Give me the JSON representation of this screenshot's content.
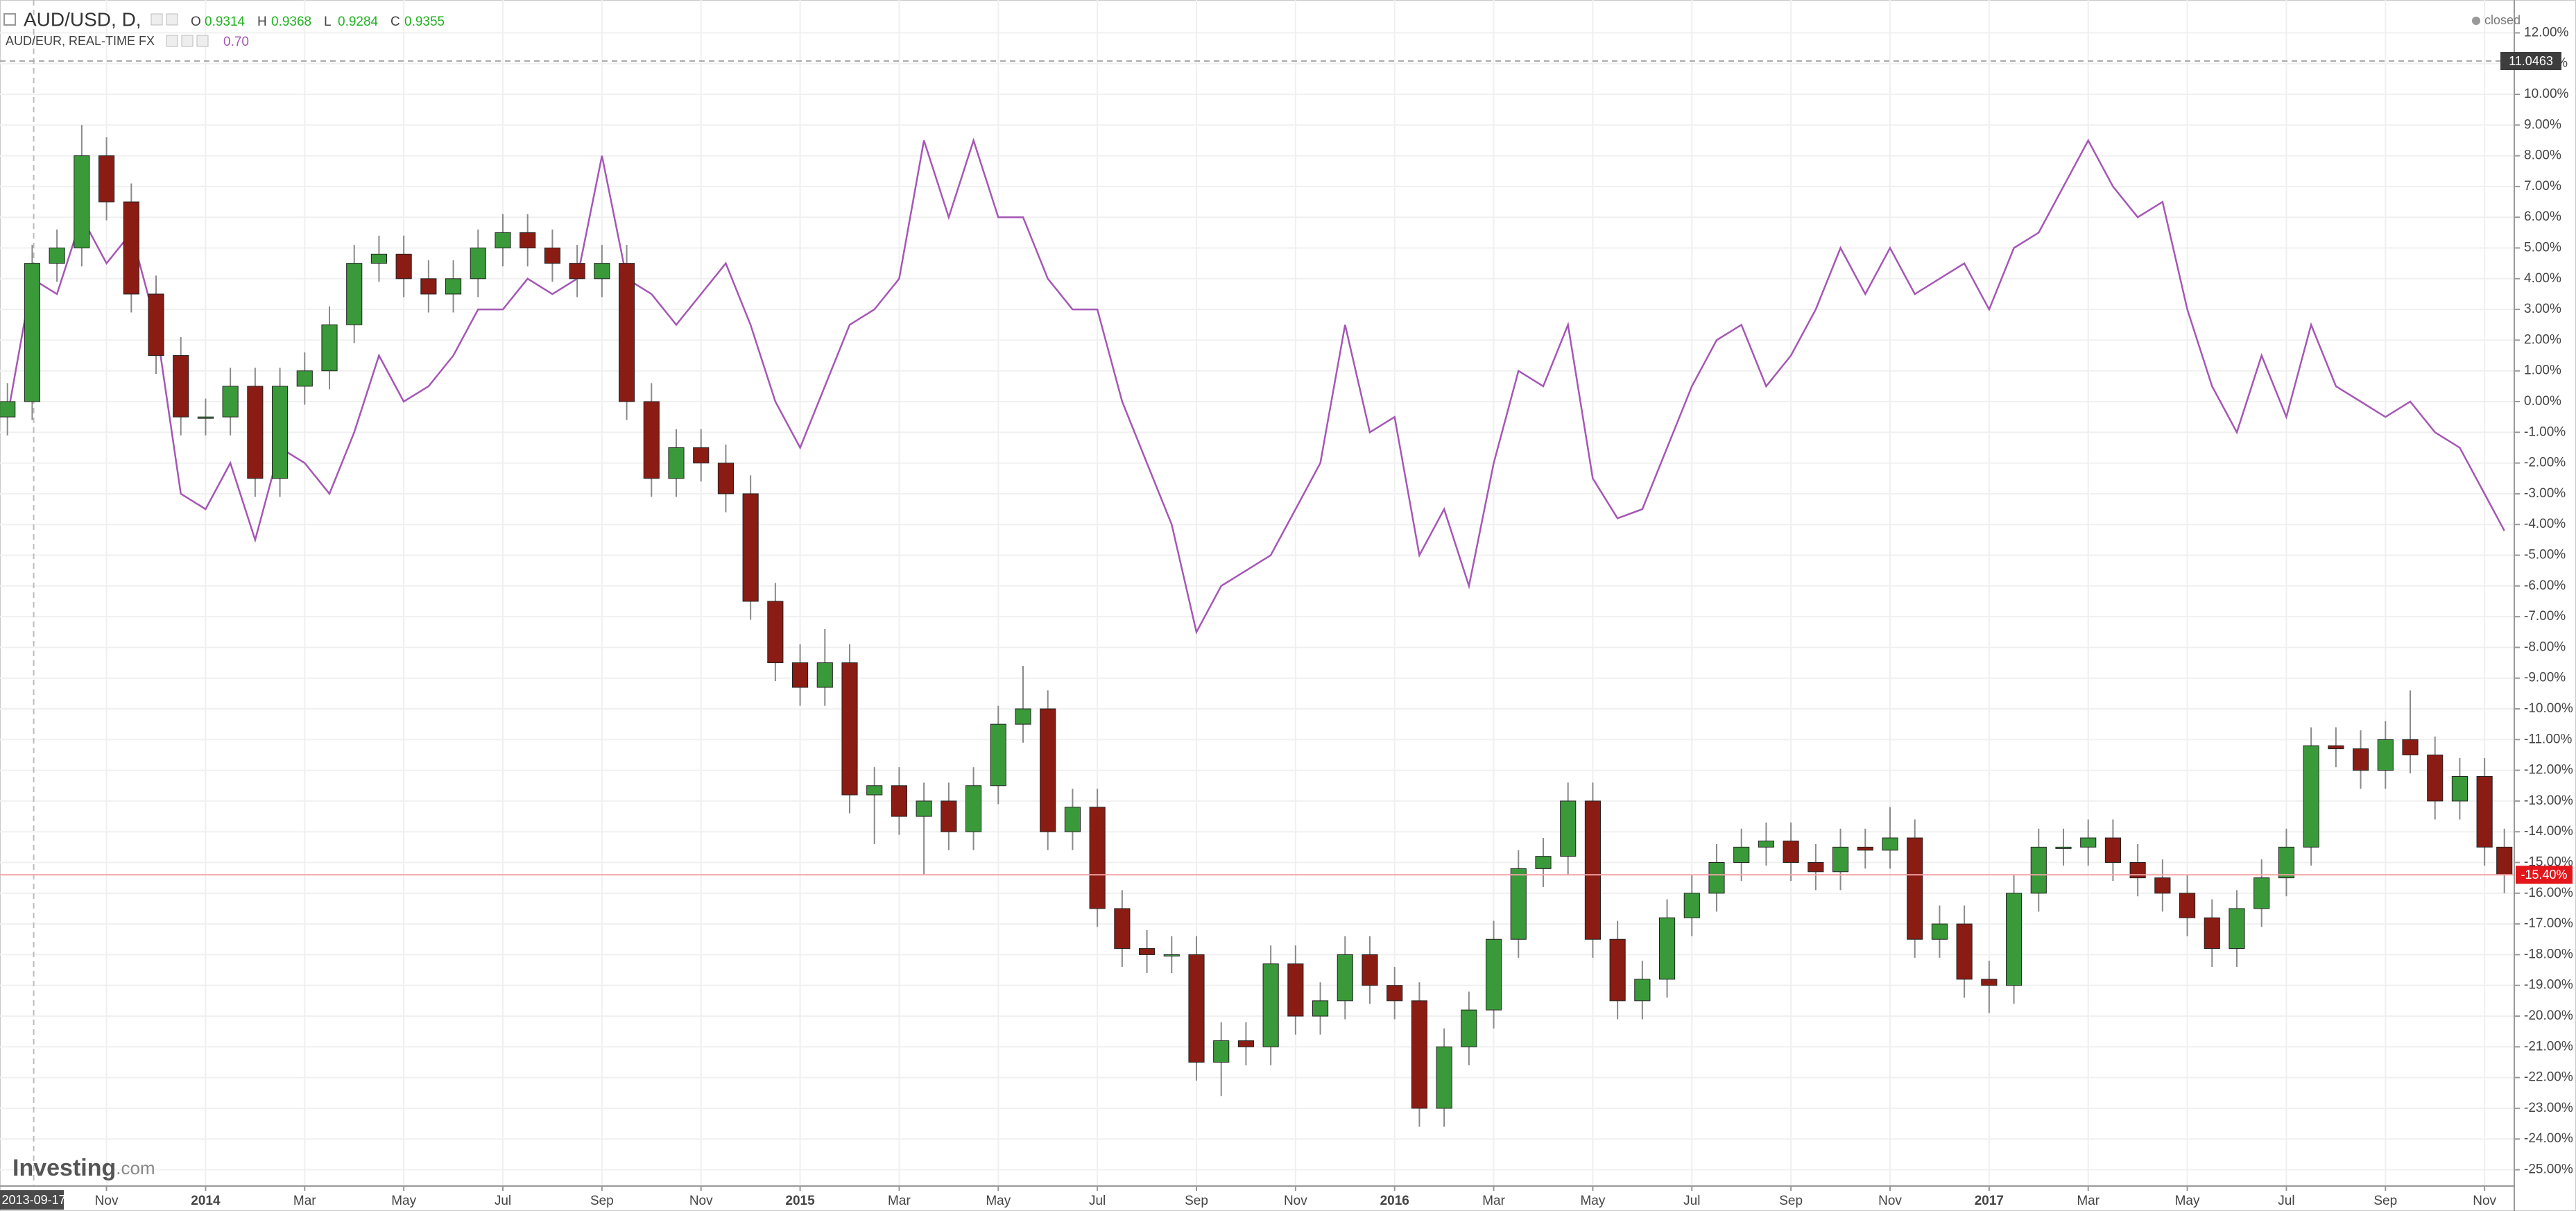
{
  "chart_data": {
    "type": "candlestick",
    "market_status": "closed",
    "watermark": [
      "Investing",
      ".com"
    ],
    "top_marker": {
      "label": "11.0463"
    },
    "last_marker": {
      "value": -15.4,
      "label": "-15.40%"
    },
    "grid": true,
    "xlim": [
      -0.15,
      50.6
    ],
    "ylim": [
      -25.53,
      13.07
    ],
    "x": [
      0,
      0.5,
      1,
      1.5,
      2,
      2.5,
      3,
      3.5,
      4,
      4.5,
      5,
      5.5,
      6,
      6.5,
      7,
      7.5,
      8,
      8.5,
      9,
      9.5,
      10,
      10.5,
      11,
      11.5,
      12,
      12.5,
      13,
      13.5,
      14,
      14.5,
      15,
      15.5,
      16,
      16.5,
      17,
      17.5,
      18,
      18.5,
      19,
      19.5,
      20,
      20.5,
      21,
      21.5,
      22,
      22.5,
      23,
      23.5,
      24,
      24.5,
      25,
      25.5,
      26,
      26.5,
      27,
      27.5,
      28,
      28.5,
      29,
      29.5,
      30,
      30.5,
      31,
      31.5,
      32,
      32.5,
      33,
      33.5,
      34,
      34.5,
      35,
      35.5,
      36,
      36.5,
      37,
      37.5,
      38,
      38.5,
      39,
      39.5,
      40,
      40.5,
      41,
      41.5,
      42,
      42.5,
      43,
      43.5,
      44,
      44.5,
      45,
      45.5,
      46,
      46.5,
      47,
      47.5,
      48,
      48.5,
      49,
      49.5,
      50,
      50.4
    ],
    "series": [
      {
        "name": "AUD/USD, D,",
        "type": "candlestick",
        "up_color": "#3a9a3a",
        "down_color": "#8a1c14",
        "wick_color": "#8a8a8a",
        "ohlc_legend": [
          {
            "key": "O",
            "value": "0.9314"
          },
          {
            "key": "H",
            "value": "0.9368"
          },
          {
            "key": "L",
            "value": "0.9284"
          },
          {
            "key": "C",
            "value": "0.9355"
          }
        ],
        "ohlc_color": "#21b121",
        "open": [
          -0.5,
          0.0,
          4.5,
          5.0,
          8.0,
          6.5,
          3.5,
          1.5,
          -0.5,
          -0.5,
          0.5,
          -2.5,
          0.5,
          1.0,
          2.5,
          4.5,
          4.8,
          4.0,
          3.5,
          4.0,
          5.0,
          5.5,
          5.0,
          4.5,
          4.0,
          4.5,
          0.0,
          -2.5,
          -1.5,
          -2.0,
          -3.0,
          -6.5,
          -8.5,
          -9.3,
          -8.5,
          -12.8,
          -12.5,
          -13.5,
          -13.0,
          -14.0,
          -12.5,
          -10.5,
          -10.0,
          -14.0,
          -13.2,
          -16.5,
          -17.8,
          -18.0,
          -18.0,
          -21.5,
          -20.8,
          -21.0,
          -18.3,
          -20.0,
          -19.5,
          -18.0,
          -19.0,
          -19.5,
          -23.0,
          -21.0,
          -19.8,
          -17.5,
          -15.2,
          -14.8,
          -13.0,
          -17.5,
          -19.5,
          -18.8,
          -16.8,
          -16.0,
          -15.0,
          -14.5,
          -14.3,
          -15.0,
          -15.3,
          -14.5,
          -14.6,
          -14.2,
          -17.5,
          -17.0,
          -18.8,
          -19.0,
          -16.0,
          -14.5,
          -14.5,
          -14.2,
          -15.0,
          -15.5,
          -16.0,
          -16.8,
          -17.8,
          -16.5,
          -15.5,
          -14.5,
          -11.2,
          -11.3,
          -12.0,
          -11.0,
          -11.5,
          -13.0,
          -12.2,
          -14.5
        ],
        "high": [
          0.6,
          5.1,
          5.6,
          9.0,
          8.6,
          7.1,
          4.1,
          2.1,
          0.1,
          1.1,
          1.1,
          1.1,
          1.6,
          3.1,
          5.1,
          5.4,
          5.4,
          4.6,
          4.6,
          5.6,
          6.1,
          6.1,
          5.6,
          5.1,
          5.1,
          5.1,
          0.6,
          -0.9,
          -0.9,
          -1.4,
          -2.4,
          -5.9,
          -7.9,
          -7.4,
          -7.9,
          -11.9,
          -11.9,
          -12.4,
          -12.4,
          -11.9,
          -9.9,
          -8.6,
          -9.4,
          -12.6,
          -12.6,
          -15.9,
          -17.2,
          -17.4,
          -17.4,
          -20.2,
          -20.2,
          -17.7,
          -17.7,
          -18.9,
          -17.4,
          -17.4,
          -18.4,
          -18.9,
          -20.4,
          -19.2,
          -16.9,
          -14.6,
          -14.2,
          -12.4,
          -12.4,
          -16.9,
          -18.2,
          -16.2,
          -15.4,
          -14.4,
          -13.9,
          -13.7,
          -13.7,
          -14.4,
          -13.9,
          -13.9,
          -13.2,
          -13.6,
          -16.4,
          -16.4,
          -18.2,
          -15.4,
          -13.9,
          -13.9,
          -13.6,
          -13.6,
          -14.4,
          -14.9,
          -15.4,
          -16.2,
          -15.9,
          -14.9,
          -13.9,
          -10.6,
          -10.6,
          -10.7,
          -10.4,
          -9.4,
          -10.9,
          -11.6,
          -11.6,
          -13.9
        ],
        "low": [
          -1.1,
          -0.6,
          3.9,
          4.4,
          5.9,
          2.9,
          0.9,
          -1.1,
          -1.1,
          -1.1,
          -3.1,
          -3.1,
          -0.1,
          0.4,
          1.9,
          3.9,
          3.4,
          2.9,
          2.9,
          3.4,
          4.4,
          4.4,
          3.9,
          3.4,
          3.4,
          -0.6,
          -3.1,
          -3.1,
          -2.6,
          -3.6,
          -7.1,
          -9.1,
          -9.9,
          -9.9,
          -13.4,
          -14.4,
          -14.1,
          -15.4,
          -14.6,
          -14.6,
          -13.1,
          -11.1,
          -14.6,
          -14.6,
          -17.1,
          -18.4,
          -18.6,
          -18.6,
          -22.1,
          -22.6,
          -21.6,
          -21.6,
          -20.6,
          -20.6,
          -20.1,
          -19.6,
          -20.1,
          -23.6,
          -23.6,
          -21.6,
          -20.4,
          -18.1,
          -15.8,
          -15.4,
          -18.1,
          -20.1,
          -20.1,
          -19.4,
          -17.4,
          -16.6,
          -15.6,
          -15.1,
          -15.6,
          -15.9,
          -15.9,
          -15.2,
          -15.2,
          -18.1,
          -18.1,
          -19.4,
          -19.9,
          -19.6,
          -16.6,
          -15.1,
          -15.1,
          -15.6,
          -16.1,
          -16.6,
          -17.4,
          -18.4,
          -18.4,
          -17.1,
          -16.1,
          -15.1,
          -11.9,
          -12.6,
          -12.6,
          -12.1,
          -13.6,
          -13.6,
          -15.1,
          -16.0
        ],
        "close": [
          0.0,
          4.5,
          5.0,
          8.0,
          6.5,
          3.5,
          1.5,
          -0.5,
          -0.5,
          0.5,
          -2.5,
          0.5,
          1.0,
          2.5,
          4.5,
          4.8,
          4.0,
          3.5,
          4.0,
          5.0,
          5.5,
          5.0,
          4.5,
          4.0,
          4.5,
          0.0,
          -2.5,
          -1.5,
          -2.0,
          -3.0,
          -6.5,
          -8.5,
          -9.3,
          -8.5,
          -12.8,
          -12.5,
          -13.5,
          -13.0,
          -14.0,
          -12.5,
          -10.5,
          -10.0,
          -14.0,
          -13.2,
          -16.5,
          -17.8,
          -18.0,
          -18.0,
          -21.5,
          -20.8,
          -21.0,
          -18.3,
          -20.0,
          -19.5,
          -18.0,
          -19.0,
          -19.5,
          -23.0,
          -21.0,
          -19.8,
          -17.5,
          -15.2,
          -14.8,
          -13.0,
          -17.5,
          -19.5,
          -18.8,
          -16.8,
          -16.0,
          -15.0,
          -14.5,
          -14.3,
          -15.0,
          -15.3,
          -14.5,
          -14.6,
          -14.2,
          -17.5,
          -17.0,
          -18.8,
          -19.0,
          -16.0,
          -14.5,
          -14.5,
          -14.2,
          -15.0,
          -15.5,
          -16.0,
          -16.8,
          -17.8,
          -16.5,
          -15.5,
          -14.5,
          -11.2,
          -11.3,
          -12.0,
          -11.0,
          -11.5,
          -13.0,
          -12.2,
          -14.5,
          -15.4
        ]
      },
      {
        "name": "AUD/EUR, REAL-TIME FX",
        "type": "line",
        "color": "#a557b5",
        "last_label": "0.70",
        "values": [
          -0.5,
          4.0,
          3.5,
          6.0,
          4.5,
          5.5,
          2.5,
          -3.0,
          -3.5,
          -2.0,
          -4.5,
          -1.5,
          -2.0,
          -3.0,
          -1.0,
          1.5,
          0.0,
          0.5,
          1.5,
          3.0,
          3.0,
          4.0,
          3.5,
          4.0,
          8.0,
          4.0,
          3.5,
          2.5,
          3.5,
          4.5,
          2.5,
          0.0,
          -1.5,
          0.5,
          2.5,
          3.0,
          4.0,
          8.5,
          6.0,
          8.5,
          6.0,
          6.0,
          4.0,
          3.0,
          3.0,
          0.0,
          -2.0,
          -4.0,
          -7.5,
          -6.0,
          -5.5,
          -5.0,
          -3.5,
          -2.0,
          2.5,
          -1.0,
          -0.5,
          -5.0,
          -3.5,
          -6.0,
          -2.0,
          1.0,
          0.5,
          2.5,
          -2.5,
          -3.8,
          -3.5,
          -1.5,
          0.5,
          2.0,
          2.5,
          0.5,
          1.5,
          3.0,
          5.0,
          3.5,
          5.0,
          3.5,
          4.0,
          4.5,
          3.0,
          5.0,
          5.5,
          7.0,
          8.5,
          7.0,
          6.0,
          6.5,
          3.0,
          0.5,
          -1.0,
          1.5,
          -0.5,
          2.5,
          0.5,
          0.0,
          -0.5,
          0.0,
          -1.0,
          -1.5,
          -3.0,
          -4.2
        ]
      }
    ],
    "yticks": [
      {
        "value": 12,
        "label": "12.00%"
      },
      {
        "value": 11,
        "label": "11.00%"
      },
      {
        "value": 10,
        "label": "10.00%"
      },
      {
        "value": 9,
        "label": "9.00%"
      },
      {
        "value": 8,
        "label": "8.00%"
      },
      {
        "value": 7,
        "label": "7.00%"
      },
      {
        "value": 6,
        "label": "6.00%"
      },
      {
        "value": 5,
        "label": "5.00%"
      },
      {
        "value": 4,
        "label": "4.00%"
      },
      {
        "value": 3,
        "label": "3.00%"
      },
      {
        "value": 2,
        "label": "2.00%"
      },
      {
        "value": 1,
        "label": "1.00%"
      },
      {
        "value": 0,
        "label": "0.00%"
      },
      {
        "value": -1,
        "label": "-1.00%"
      },
      {
        "value": -2,
        "label": "-2.00%"
      },
      {
        "value": -3,
        "label": "-3.00%"
      },
      {
        "value": -4,
        "label": "-4.00%"
      },
      {
        "value": -5,
        "label": "-5.00%"
      },
      {
        "value": -6,
        "label": "-6.00%"
      },
      {
        "value": -7,
        "label": "-7.00%"
      },
      {
        "value": -8,
        "label": "-8.00%"
      },
      {
        "value": -9,
        "label": "-9.00%"
      },
      {
        "value": -10,
        "label": "-10.00%"
      },
      {
        "value": -11,
        "label": "-11.00%"
      },
      {
        "value": -12,
        "label": "-12.00%"
      },
      {
        "value": -13,
        "label": "-13.00%"
      },
      {
        "value": -14,
        "label": "-14.00%"
      },
      {
        "value": -15,
        "label": "-15.00%"
      },
      {
        "value": -16,
        "label": "-16.00%"
      },
      {
        "value": -17,
        "label": "-17.00%"
      },
      {
        "value": -18,
        "label": "-18.00%"
      },
      {
        "value": -19,
        "label": "-19.00%"
      },
      {
        "value": -20,
        "label": "-20.00%"
      },
      {
        "value": -21,
        "label": "-21.00%"
      },
      {
        "value": -22,
        "label": "-22.00%"
      },
      {
        "value": -23,
        "label": "-23.00%"
      },
      {
        "value": -24,
        "label": "-24.00%"
      },
      {
        "value": -25,
        "label": "-25.00%"
      }
    ],
    "xticks": [
      {
        "value": 0.53,
        "label": "2013-09-17"
      },
      {
        "value": 2,
        "label": "Nov"
      },
      {
        "value": 4,
        "label": "2014"
      },
      {
        "value": 6,
        "label": "Mar"
      },
      {
        "value": 8,
        "label": "May"
      },
      {
        "value": 10,
        "label": "Jul"
      },
      {
        "value": 12,
        "label": "Sep"
      },
      {
        "value": 14,
        "label": "Nov"
      },
      {
        "value": 16,
        "label": "2015"
      },
      {
        "value": 18,
        "label": "Mar"
      },
      {
        "value": 20,
        "label": "May"
      },
      {
        "value": 22,
        "label": "Jul"
      },
      {
        "value": 24,
        "label": "Sep"
      },
      {
        "value": 26,
        "label": "Nov"
      },
      {
        "value": 28,
        "label": "2016"
      },
      {
        "value": 30,
        "label": "Mar"
      },
      {
        "value": 32,
        "label": "May"
      },
      {
        "value": 34,
        "label": "Jul"
      },
      {
        "value": 36,
        "label": "Sep"
      },
      {
        "value": 38,
        "label": "Nov"
      },
      {
        "value": 40,
        "label": "2017"
      },
      {
        "value": 42,
        "label": "Mar"
      },
      {
        "value": 44,
        "label": "May"
      },
      {
        "value": 46,
        "label": "Jul"
      },
      {
        "value": 48,
        "label": "Sep"
      },
      {
        "value": 50,
        "label": "Nov"
      }
    ]
  }
}
